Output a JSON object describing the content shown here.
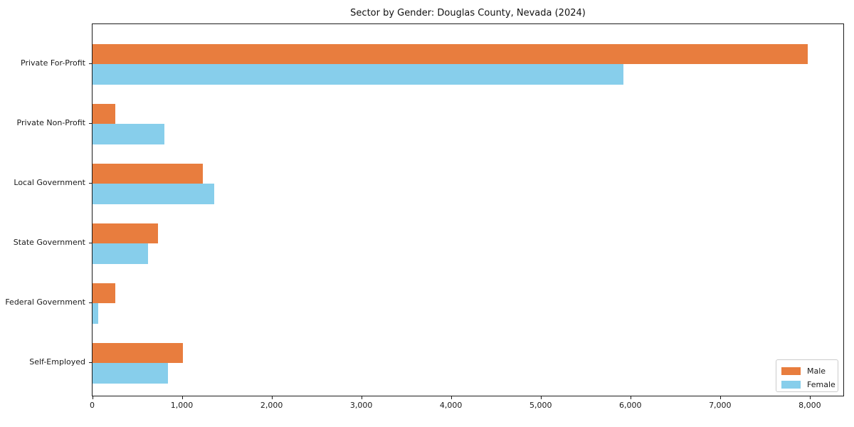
{
  "chart_data": {
    "type": "bar",
    "orientation": "horizontal",
    "title": "Sector by Gender: Douglas County, Nevada (2024)",
    "categories": [
      "Private For-Profit",
      "Private Non-Profit",
      "Local Government",
      "State Government",
      "Federal Government",
      "Self-Employed"
    ],
    "series": [
      {
        "name": "Male",
        "color": "#e87d3e",
        "values": [
          7970,
          250,
          1230,
          730,
          250,
          1010
        ]
      },
      {
        "name": "Female",
        "color": "#87ceeb",
        "values": [
          5920,
          800,
          1360,
          620,
          60,
          840
        ]
      }
    ],
    "xlim": [
      0,
      8370
    ],
    "x_tick_values": [
      0,
      1000,
      2000,
      3000,
      4000,
      5000,
      6000,
      7000,
      8000
    ],
    "x_tick_labels": [
      "0",
      "1,000",
      "2,000",
      "3,000",
      "4,000",
      "5,000",
      "6,000",
      "7,000",
      "8,000"
    ],
    "xlabel": "",
    "ylabel": "",
    "grid": false,
    "legend_position": "lower right"
  }
}
